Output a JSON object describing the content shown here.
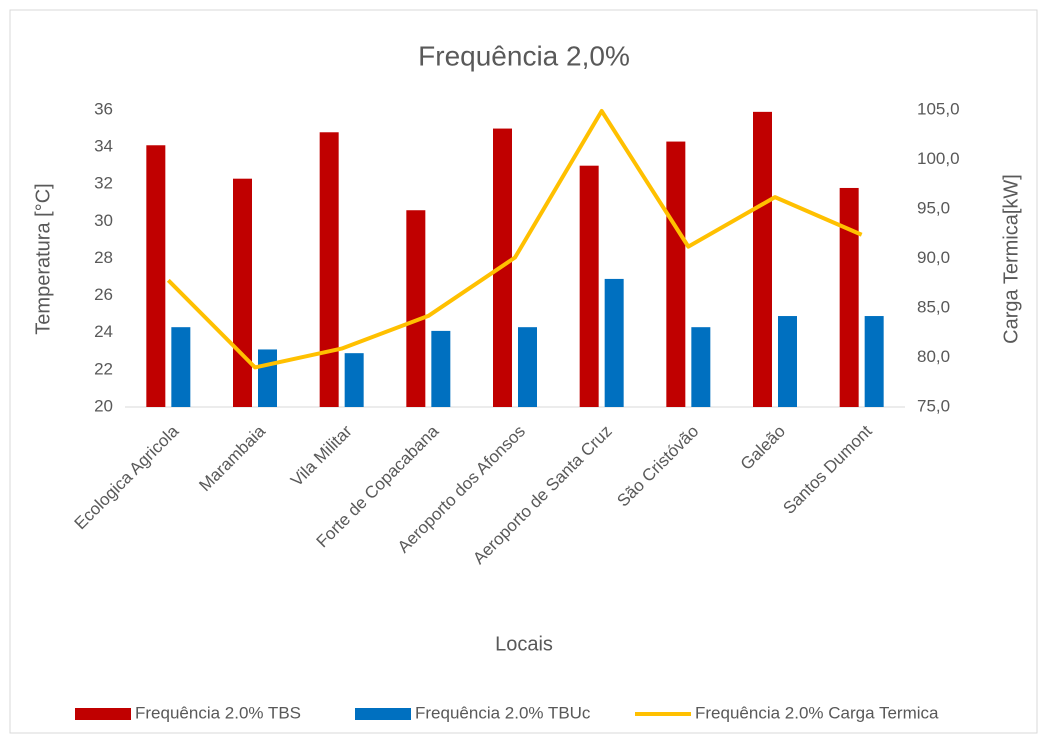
{
  "chart_data": {
    "type": "bar",
    "title": "Frequência 2,0%",
    "x_label": "Locais",
    "y_label": "Temperatura [°C]",
    "y2_label": "Carga Termica[kW]",
    "categories": [
      "Ecologica Agricola",
      "Marambaia",
      "Vila Militar",
      "Forte de Copacabana",
      "Aeroporto dos Afonsos",
      "Aeroporto de Santa  Cruz",
      "São Cristóvão",
      "Galeão",
      "Santos Dumont"
    ],
    "series": [
      {
        "name": "Frequência 2.0% TBS",
        "type": "bar",
        "color": "#c00000",
        "values": [
          34.1,
          32.3,
          34.8,
          30.6,
          35.0,
          33.0,
          34.3,
          35.9,
          31.8
        ]
      },
      {
        "name": "Frequência 2.0% TBUc",
        "type": "bar",
        "color": "#0070c0",
        "values": [
          24.3,
          23.1,
          22.9,
          24.1,
          24.3,
          26.9,
          24.3,
          24.9,
          24.9
        ]
      },
      {
        "name": "Frequência 2.0% Carga Termica",
        "type": "line",
        "axis": "y2",
        "color": "#ffc000",
        "values": [
          87.8,
          79.0,
          80.9,
          84.2,
          90.1,
          104.9,
          91.2,
          96.2,
          92.4
        ]
      }
    ],
    "ylim": [
      20,
      36
    ],
    "yticks": [
      20,
      22,
      24,
      26,
      28,
      30,
      32,
      34,
      36
    ],
    "y2lim": [
      75,
      105
    ],
    "y2ticks": [
      {
        "value": 75,
        "label": "75,0"
      },
      {
        "value": 80,
        "label": "80,0"
      },
      {
        "value": 85,
        "label": "85,0"
      },
      {
        "value": 90,
        "label": "90,0"
      },
      {
        "value": 95,
        "label": "95,0"
      },
      {
        "value": 100,
        "label": "100,0"
      },
      {
        "value": 105,
        "label": "105,0"
      }
    ],
    "grid": false,
    "legend": "bottom"
  }
}
